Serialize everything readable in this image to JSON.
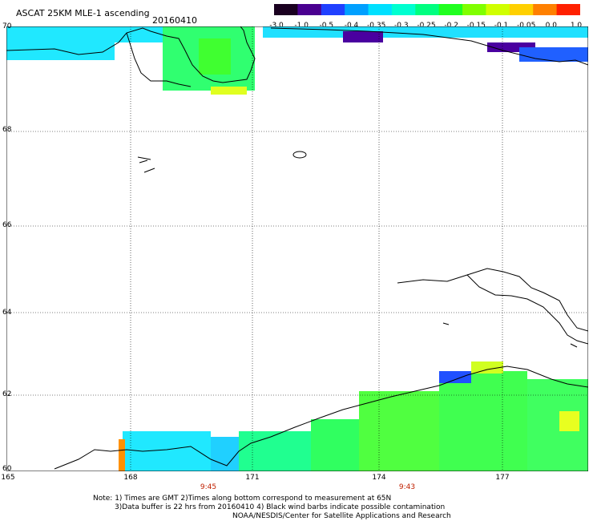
{
  "title": "ASCAT 25KM MLE-1 ascending",
  "date": "20160410",
  "colorbar": {
    "labels": [
      "-3.0",
      "-1.0",
      "-0.5",
      "-0.4",
      "-0.35",
      "-0.3",
      "-0.25",
      "-0.2",
      "-0.15",
      "-0.1",
      "-0.05",
      "0.0",
      "1.0"
    ],
    "colors": [
      "#1a0020",
      "#4a0090",
      "#2040ff",
      "#00a0ff",
      "#00e0ff",
      "#00ffd0",
      "#00ff80",
      "#20ff20",
      "#80ff00",
      "#d0ff00",
      "#ffd000",
      "#ff8000",
      "#ff2000"
    ]
  },
  "map": {
    "lat_labels": [
      "70",
      "68",
      "66",
      "64",
      "62",
      "60"
    ],
    "lon_labels": [
      "165",
      "168",
      "171",
      "174",
      "177"
    ],
    "times": [
      "9:45",
      "9:43"
    ]
  },
  "notes": {
    "line1": "Note: 1) Times are GMT 2)Times along bottom correspond to measurement at 65N",
    "line2": "3)Data buffer is 22 hrs from 20160410 4) Black wind barbs indicate possible contamination",
    "line3": "NOAA/NESDIS/Center for Satellite Applications and Research"
  }
}
